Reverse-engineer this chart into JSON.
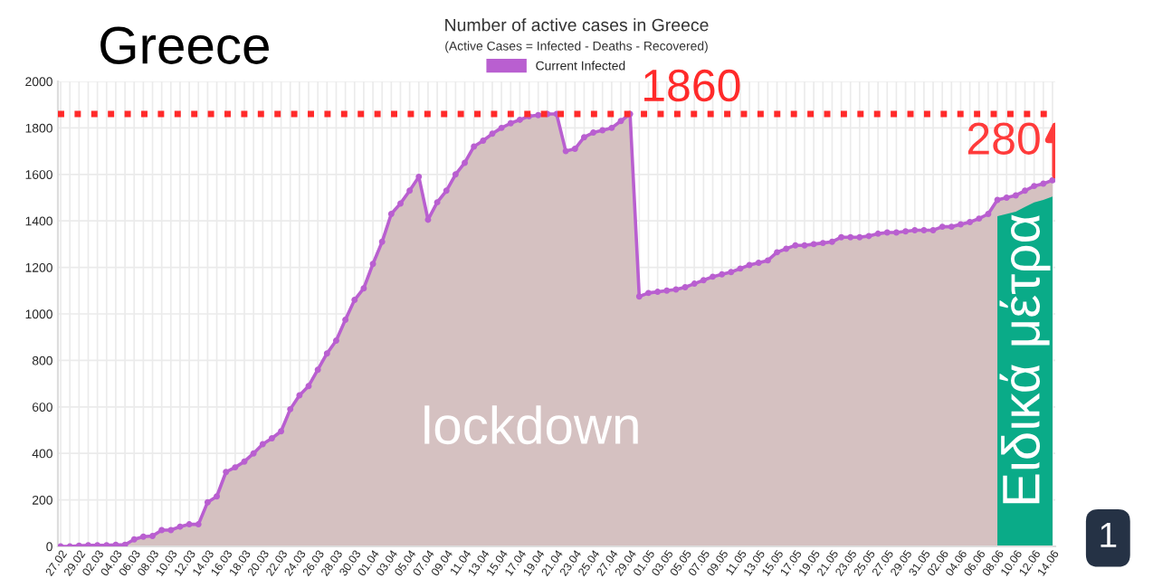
{
  "chart_data": {
    "type": "area",
    "title": "Number of active cases in Greece",
    "subtitle": "(Active Cases = Infected - Deaths - Recovered)",
    "categories": [
      "27.02",
      null,
      "29.02",
      null,
      "02.03",
      null,
      "04.03",
      null,
      "06.03",
      null,
      "08.03",
      null,
      "10.03",
      null,
      "12.03",
      null,
      "14.03",
      null,
      "16.03",
      null,
      "18.03",
      null,
      "20.03",
      null,
      "22.03",
      null,
      "24.03",
      null,
      "26.03",
      null,
      "28.03",
      null,
      "30.03",
      null,
      "01.04",
      null,
      "03.04",
      null,
      "05.04",
      null,
      "07.04",
      null,
      "09.04",
      null,
      "11.04",
      null,
      "13.04",
      null,
      "15.04",
      null,
      "17.04",
      null,
      "19.04",
      null,
      "21.04",
      null,
      "23.04",
      null,
      "25.04",
      null,
      "27.04",
      null,
      "29.04",
      null,
      "01.05",
      null,
      "03.05",
      null,
      "05.05",
      null,
      "07.05",
      null,
      "09.05",
      null,
      "11.05",
      null,
      "13.05",
      null,
      "15.05",
      null,
      "17.05",
      null,
      "19.05",
      null,
      "21.05",
      null,
      "23.05",
      null,
      "25.05",
      null,
      "27.05",
      null,
      "29.05",
      null,
      "31.05",
      null,
      "02.06",
      null,
      "04.06",
      null,
      "06.06",
      null,
      "08.06",
      null,
      "10.06",
      null,
      "12.06",
      null,
      "14.06"
    ],
    "series": [
      {
        "name": "Current Infected",
        "color": "#b95fd0",
        "values": [
          0,
          0,
          3,
          5,
          5,
          5,
          7,
          7,
          30,
          42,
          45,
          70,
          70,
          85,
          95,
          95,
          190,
          215,
          320,
          340,
          365,
          400,
          440,
          465,
          495,
          590,
          650,
          690,
          760,
          830,
          885,
          975,
          1060,
          1110,
          1215,
          1310,
          1430,
          1475,
          1530,
          1590,
          1405,
          1480,
          1530,
          1600,
          1650,
          1720,
          1745,
          1775,
          1800,
          1820,
          1835,
          1850,
          1855,
          1860,
          1860,
          1700,
          1710,
          1760,
          1780,
          1790,
          1800,
          1830,
          1860,
          1075,
          1090,
          1095,
          1100,
          1105,
          1115,
          1130,
          1145,
          1160,
          1170,
          1180,
          1195,
          1210,
          1220,
          1230,
          1265,
          1280,
          1295,
          1295,
          1300,
          1305,
          1310,
          1330,
          1330,
          1330,
          1335,
          1345,
          1350,
          1350,
          1355,
          1360,
          1360,
          1360,
          1375,
          1375,
          1385,
          1395,
          1410,
          1430,
          1490,
          1500,
          1510,
          1530,
          1550,
          1560,
          1575
        ]
      }
    ],
    "ylim": [
      0,
      2000
    ],
    "yticks": [
      0,
      200,
      400,
      600,
      800,
      1000,
      1200,
      1400,
      1600,
      1800,
      2000
    ],
    "grid": true,
    "legend": "top",
    "marker": "circle",
    "line_style": "solid",
    "ref_lines": [
      {
        "axis": "y",
        "value": 1860,
        "label": "1860",
        "color": "#ff2a2a",
        "line_style": "dotted"
      }
    ],
    "bands": [
      {
        "axis": "x",
        "from": "08.06",
        "to": "14.06",
        "label": "Ειδικά μέτρα",
        "color": "#0aab88"
      }
    ],
    "annotations": [
      {
        "text": "280",
        "x": "14.06",
        "y": 1575
      },
      "Greece",
      "lockdown",
      "1"
    ]
  }
}
